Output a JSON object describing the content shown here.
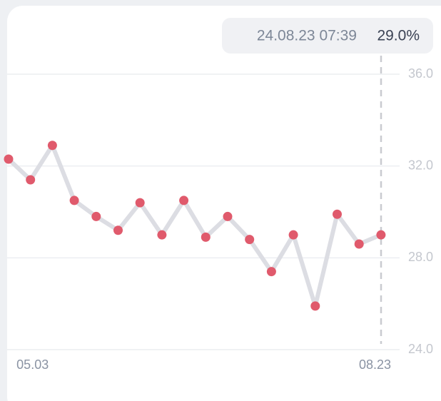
{
  "chart_data": {
    "type": "line",
    "categories": [
      null,
      "05.03",
      null,
      null,
      null,
      null,
      null,
      null,
      null,
      null,
      null,
      null,
      null,
      null,
      null,
      null,
      null,
      "08.23"
    ],
    "values": [
      32.3,
      31.4,
      32.9,
      30.5,
      29.8,
      29.2,
      30.4,
      29.0,
      30.5,
      28.9,
      29.8,
      28.8,
      27.4,
      29.0,
      25.9,
      29.9,
      28.6,
      29.0
    ],
    "line_color": "#dcdde3",
    "marker_color": "#e05a6c",
    "ylim": [
      24,
      36
    ],
    "yticks": [
      {
        "value": 24,
        "label": "24.0"
      },
      {
        "value": 28,
        "label": "28.0"
      },
      {
        "value": 32,
        "label": "32.0"
      },
      {
        "value": 36,
        "label": "36.0"
      }
    ],
    "grid": true,
    "tooltip": {
      "label": "24.08.23 07:39",
      "value_label": "29.0%"
    }
  }
}
